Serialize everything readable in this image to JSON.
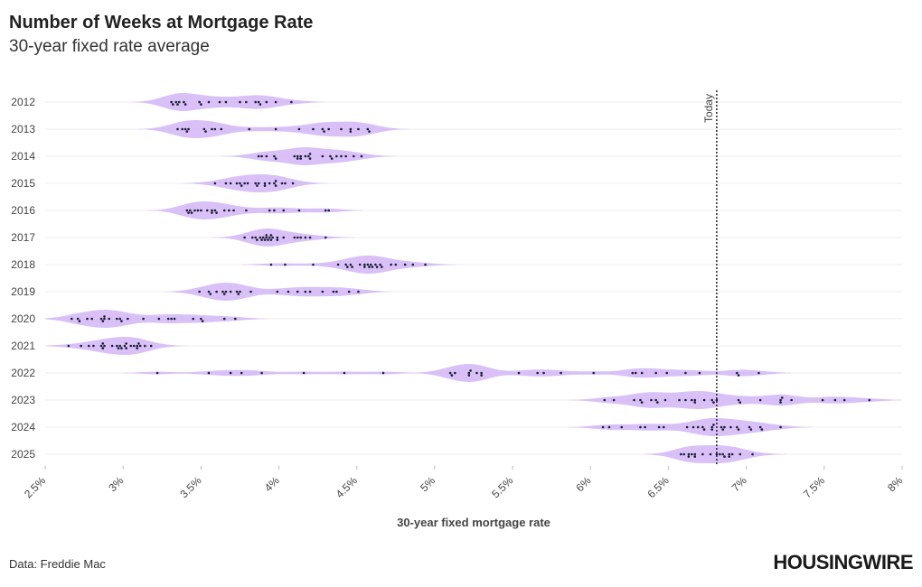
{
  "chart_data": {
    "type": "violin",
    "title": "Number of Weeks at Mortgage Rate",
    "subtitle": "30-year fixed rate average",
    "x_label": "30-year fixed mortgage rate",
    "source": "Data: Freddie Mac",
    "brand": "HOUSINGWIRE",
    "violin_color": "#d2b6f7",
    "point_color": "#1b1b3a",
    "xlim": [
      2.5,
      8
    ],
    "xticks": [
      {
        "value": 2.5,
        "label": "2.5%"
      },
      {
        "value": 3,
        "label": "3%"
      },
      {
        "value": 3.5,
        "label": "3.5%"
      },
      {
        "value": 4,
        "label": "4%"
      },
      {
        "value": 4.5,
        "label": "4.5%"
      },
      {
        "value": 5,
        "label": "5%"
      },
      {
        "value": 5.5,
        "label": "5.5%"
      },
      {
        "value": 6,
        "label": "6%"
      },
      {
        "value": 6.5,
        "label": "6.5%"
      },
      {
        "value": 7,
        "label": "7%"
      },
      {
        "value": 7.5,
        "label": "7.5%"
      },
      {
        "value": 8,
        "label": "8%"
      }
    ],
    "grid": true,
    "annotations": [
      {
        "label": "Today",
        "value": 6.81
      }
    ],
    "categories": [
      "2012",
      "2013",
      "2014",
      "2015",
      "2016",
      "2017",
      "2018",
      "2019",
      "2020",
      "2021",
      "2022",
      "2023",
      "2024",
      "2025"
    ],
    "values": [
      [
        4.08,
        3.98,
        3.92,
        3.88,
        3.87,
        3.85,
        3.79,
        3.75,
        3.66,
        3.62,
        3.55,
        3.49,
        3.5,
        3.4,
        3.36,
        3.34,
        3.35,
        3.31,
        3.32,
        3.39
      ],
      [
        3.41,
        3.38,
        3.42,
        3.53,
        3.57,
        3.63,
        3.52,
        3.4,
        3.35,
        3.59,
        3.81,
        3.98,
        4.46,
        4.51,
        4.29,
        4.4,
        4.57,
        4.58,
        4.32,
        4.22,
        4.13,
        4.28,
        4.46
      ],
      [
        4.53,
        4.48,
        4.43,
        4.37,
        4.33,
        4.4,
        4.34,
        4.2,
        4.14,
        4.17,
        4.14,
        4.12,
        4.1,
        4.2,
        4.28,
        4.19,
        4.12,
        3.97,
        3.92,
        3.98,
        3.89,
        3.87
      ],
      [
        3.73,
        3.66,
        3.59,
        3.69,
        3.75,
        3.78,
        3.87,
        3.98,
        4.02,
        4.04,
        3.98,
        3.91,
        3.86,
        3.85,
        3.91,
        3.76,
        3.8,
        3.94,
        3.97,
        4.09
      ],
      [
        3.97,
        3.79,
        3.65,
        3.68,
        3.71,
        3.59,
        3.6,
        3.57,
        3.54,
        3.48,
        3.43,
        3.41,
        3.44,
        3.46,
        3.42,
        3.5,
        3.57,
        3.94,
        4.03,
        4.13,
        4.32,
        4.3
      ],
      [
        4.2,
        4.12,
        4.17,
        4.3,
        4.14,
        4.1,
        4.03,
        3.95,
        3.9,
        3.89,
        3.96,
        3.92,
        3.88,
        3.93,
        3.86,
        3.78,
        3.83,
        3.85,
        3.91,
        3.94,
        3.99,
        3.95,
        3.92,
        3.99
      ],
      [
        3.95,
        4.04,
        4.22,
        4.38,
        4.43,
        4.46,
        4.44,
        4.47,
        4.58,
        4.66,
        4.62,
        4.57,
        4.55,
        4.52,
        4.59,
        4.6,
        4.65,
        4.72,
        4.86,
        4.94,
        4.81,
        4.75,
        4.63,
        4.55
      ],
      [
        4.51,
        4.45,
        4.37,
        4.35,
        4.28,
        4.17,
        4.2,
        4.12,
        4.06,
        3.99,
        3.82,
        3.73,
        3.75,
        3.6,
        3.55,
        3.49,
        3.56,
        3.64,
        3.65,
        3.69,
        3.66,
        3.74
      ],
      [
        3.72,
        3.65,
        3.51,
        3.45,
        3.29,
        3.5,
        3.33,
        3.23,
        3.31,
        3.13,
        3.03,
        2.98,
        2.88,
        2.99,
        2.96,
        2.88,
        2.91,
        2.86,
        2.87,
        2.8,
        2.72,
        2.77,
        2.71,
        2.67
      ],
      [
        2.65,
        2.73,
        2.81,
        3.02,
        3.18,
        3.09,
        2.98,
        2.96,
        2.97,
        3.02,
        2.93,
        2.99,
        2.87,
        2.78,
        2.86,
        2.88,
        2.87,
        3.01,
        3.09,
        3.14,
        3.07,
        3.11,
        3.05,
        3.1
      ],
      [
        3.22,
        3.55,
        3.69,
        3.76,
        3.89,
        4.16,
        4.42,
        4.67,
        5.11,
        5.27,
        5.3,
        5.23,
        5.1,
        5.22,
        5.81,
        5.7,
        5.54,
        5.3,
        5.13,
        5.22,
        5.66,
        6.02,
        6.29,
        6.7,
        6.94,
        7.08,
        6.95,
        6.61,
        6.49,
        6.33,
        6.27,
        6.42
      ],
      [
        6.48,
        6.33,
        6.15,
        6.09,
        6.32,
        6.73,
        6.65,
        6.42,
        6.28,
        6.39,
        6.43,
        6.57,
        6.79,
        6.67,
        6.78,
        6.81,
        7.22,
        7.09,
        6.96,
        7.23,
        7.49,
        7.63,
        7.79,
        7.57,
        7.29,
        7.22,
        6.95,
        6.67,
        6.61
      ],
      [
        6.62,
        6.66,
        6.69,
        6.9,
        6.94,
        7.1,
        7.22,
        7.09,
        7.03,
        6.95,
        6.86,
        6.78,
        6.73,
        6.47,
        6.35,
        6.2,
        6.08,
        6.12,
        6.32,
        6.44,
        6.72,
        6.79,
        6.84,
        6.78,
        6.85,
        7.02
      ],
      [
        6.91,
        7.04,
        6.96,
        6.85,
        6.89,
        6.63,
        6.67,
        6.65,
        6.83,
        6.81,
        6.86,
        6.89,
        6.77,
        6.72,
        6.67,
        6.63,
        6.58,
        6.6
      ]
    ]
  }
}
